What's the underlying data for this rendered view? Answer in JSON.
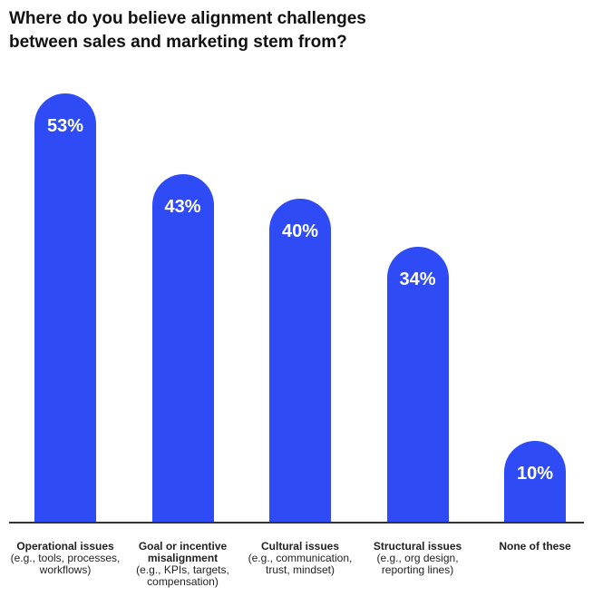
{
  "title": {
    "line1": "Where do you believe alignment challenges",
    "line2": "between sales and marketing stem from?"
  },
  "colors": {
    "bar": "#2F4BF5",
    "label_text": "#FFFFFF",
    "baseline": "#333333"
  },
  "chart_data": {
    "type": "bar",
    "title": "Where do you believe alignment challenges between sales and marketing stem from?",
    "categories": [
      {
        "main": [
          "Operational issues"
        ],
        "sub": [
          "(e.g., tools, processes,",
          "workflows)"
        ]
      },
      {
        "main": [
          "Goal or incentive",
          "misalignment"
        ],
        "sub": [
          "(e.g., KPIs, targets,",
          "compensation)"
        ]
      },
      {
        "main": [
          "Cultural issues"
        ],
        "sub": [
          "(e.g., communication,",
          "trust, mindset)"
        ]
      },
      {
        "main": [
          "Structural issues"
        ],
        "sub": [
          "(e.g., org design,",
          "reporting lines)"
        ]
      },
      {
        "main": [
          "None of these"
        ],
        "sub": []
      }
    ],
    "values": [
      53,
      43,
      40,
      34,
      10
    ],
    "value_labels": [
      "53%",
      "43%",
      "40%",
      "34%",
      "10%"
    ],
    "unit": "%",
    "xlabel": "",
    "ylabel": "",
    "ylim": [
      0,
      60
    ],
    "grid": false,
    "legend": "none"
  }
}
